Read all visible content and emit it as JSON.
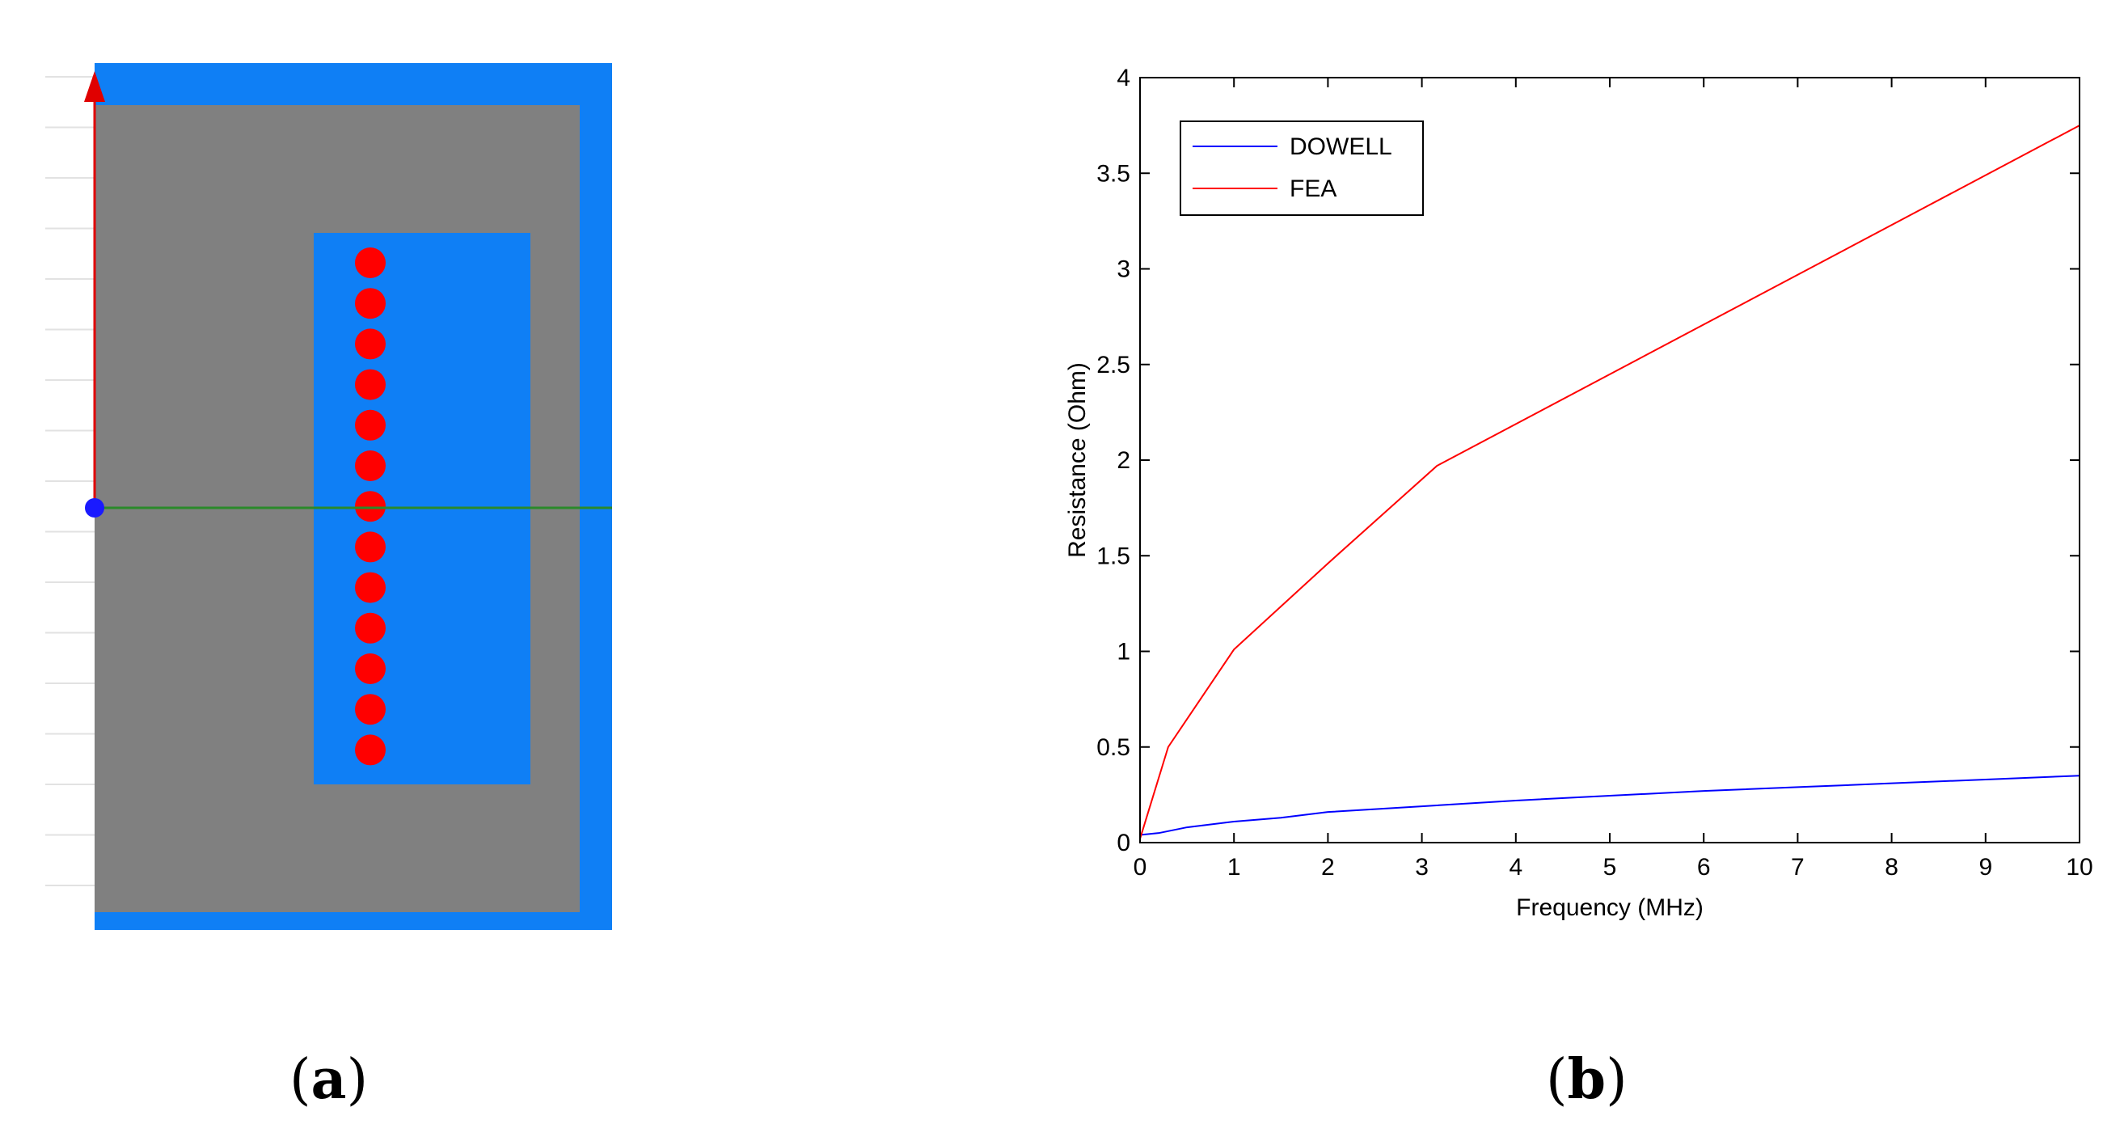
{
  "panel_a": {
    "colors": {
      "outer": "#0f7ff5",
      "core": "#808080",
      "window": "#0f7ff5",
      "conductor": "#ff0000",
      "y_axis": "#e00000",
      "x_axis": "#2a8a2a",
      "origin": "#1a1aff"
    },
    "conductor_count": 13
  },
  "captions": {
    "a_open": "(",
    "a_letter": "a",
    "a_close": ")",
    "b_open": "(",
    "b_letter": "b",
    "b_close": ")"
  },
  "chart_data": {
    "type": "line",
    "title": "",
    "xlabel": "Frequency (MHz)",
    "ylabel": "Resistance (Ohm)",
    "xlim": [
      0,
      10
    ],
    "ylim": [
      0,
      4
    ],
    "xticks": [
      "0",
      "1",
      "2",
      "3",
      "4",
      "5",
      "6",
      "7",
      "8",
      "9",
      "10"
    ],
    "yticks": [
      "0",
      "0.5",
      "1",
      "1.5",
      "2",
      "2.5",
      "3",
      "3.5",
      "4"
    ],
    "grid": false,
    "legend_position": "top-left",
    "series": [
      {
        "name": "DOWELL",
        "color": "#0000ff",
        "x": [
          0,
          0.2,
          0.5,
          1,
          1.5,
          2,
          3,
          4,
          5,
          6,
          7,
          8,
          9,
          10
        ],
        "y": [
          0.04,
          0.05,
          0.08,
          0.11,
          0.13,
          0.16,
          0.19,
          0.22,
          0.245,
          0.27,
          0.29,
          0.31,
          0.33,
          0.35
        ]
      },
      {
        "name": "FEA",
        "color": "#ff0000",
        "x": [
          0,
          0.3,
          1,
          2,
          3.16,
          10
        ],
        "y": [
          0.02,
          0.5,
          1.01,
          1.46,
          1.97,
          3.75
        ]
      }
    ]
  }
}
